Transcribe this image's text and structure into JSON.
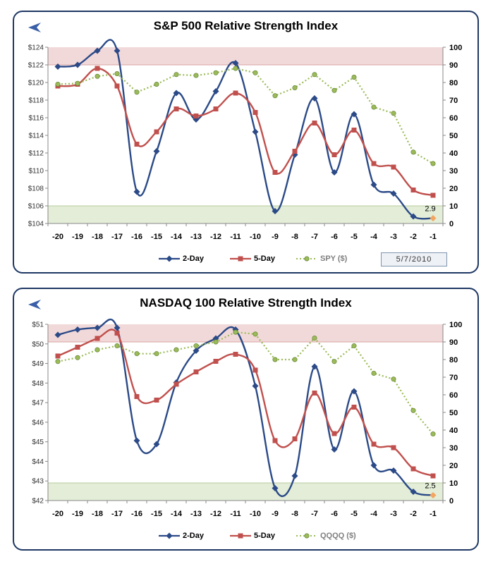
{
  "charts": [
    {
      "title": "S&P 500 Relative Strength Index",
      "date": "5/7/2010",
      "annotation": "2.9",
      "chart_data": {
        "type": "line",
        "x": [
          -20,
          -19,
          -18,
          -17,
          -16,
          -15,
          -14,
          -13,
          -12,
          -11,
          -10,
          -9,
          -8,
          -7,
          -6,
          -5,
          -4,
          -3,
          -2,
          -1
        ],
        "left_axis": {
          "ylim": [
            104,
            124
          ],
          "ticks": [
            "$104",
            "$106",
            "$108",
            "$110",
            "$112",
            "$114",
            "$116",
            "$118",
            "$120",
            "$122",
            "$124"
          ]
        },
        "right_axis": {
          "ylim": [
            0,
            100
          ],
          "ticks": [
            "0",
            "10",
            "20",
            "30",
            "40",
            "50",
            "60",
            "70",
            "80",
            "90",
            "100"
          ]
        },
        "bands": [
          {
            "from": 90,
            "to": 100,
            "color": "#f2d9d9"
          },
          {
            "from": 0,
            "to": 10,
            "color": "#e3edd7"
          }
        ],
        "series": [
          {
            "name": "2-Day",
            "axis": "right",
            "color": "#2b4a87",
            "values": [
              89,
              90,
              98,
              98,
              18,
              41,
              74,
              59,
              75,
              91,
              52,
              7,
              39,
              71,
              29,
              62,
              22,
              17,
              4,
              3
            ]
          },
          {
            "name": "5-Day",
            "axis": "right",
            "color": "#c0504d",
            "values": [
              78,
              79,
              88,
              78,
              45,
              52,
              65,
              61,
              65,
              74,
              63,
              29,
              41,
              57,
              39,
              53,
              34,
              32,
              19,
              16
            ]
          },
          {
            "name": "SPY ($)",
            "axis": "left",
            "color": "#9bbb59",
            "values": [
              119.8,
              119.9,
              120.7,
              121,
              118.9,
              119.8,
              120.9,
              120.8,
              121.1,
              121.6,
              121.1,
              118.5,
              119.4,
              120.9,
              119.1,
              120.6,
              117.2,
              116.5,
              112.1,
              110.8
            ]
          }
        ],
        "last_marker_color": "#f4a55f",
        "grid": false,
        "legend": "bottom"
      }
    },
    {
      "title": "NASDAQ 100 Relative Strength Index",
      "date": "",
      "annotation": "2.5",
      "chart_data": {
        "type": "line",
        "x": [
          -20,
          -19,
          -18,
          -17,
          -16,
          -15,
          -14,
          -13,
          -12,
          -11,
          -10,
          -9,
          -8,
          -7,
          -6,
          -5,
          -4,
          -3,
          -2,
          -1
        ],
        "left_axis": {
          "ylim": [
            42,
            51
          ],
          "ticks": [
            "$42",
            "$43",
            "$44",
            "$45",
            "$46",
            "$47",
            "$48",
            "$49",
            "$50",
            "$51"
          ]
        },
        "right_axis": {
          "ylim": [
            0,
            100
          ],
          "ticks": [
            "0",
            "10",
            "20",
            "30",
            "40",
            "50",
            "60",
            "70",
            "80",
            "90",
            "100"
          ]
        },
        "bands": [
          {
            "from": 90,
            "to": 100,
            "color": "#f2d9d9"
          },
          {
            "from": 0,
            "to": 10,
            "color": "#e3edd7"
          }
        ],
        "series": [
          {
            "name": "2-Day",
            "axis": "right",
            "color": "#2b4a87",
            "values": [
              94,
              97,
              98,
              98,
              34,
              32,
              67,
              85,
              92,
              97,
              65,
              7,
              14,
              76,
              29,
              62,
              20,
              17,
              5,
              3
            ]
          },
          {
            "name": "5-Day",
            "axis": "right",
            "color": "#c0504d",
            "values": [
              82,
              87,
              92,
              95,
              59,
              57,
              66,
              73,
              79,
              83,
              74,
              34,
              35,
              61,
              38,
              53,
              32,
              30,
              18,
              14
            ]
          },
          {
            "name": "QQQQ ($)",
            "axis": "left",
            "color": "#9bbb59",
            "values": [
              49.1,
              49.3,
              49.7,
              49.9,
              49.5,
              49.5,
              49.7,
              49.9,
              50.1,
              50.6,
              50.5,
              49.2,
              49.2,
              50.3,
              49.1,
              49.9,
              48.5,
              48.2,
              46.6,
              45.4
            ]
          }
        ],
        "last_marker_color": "#f4a55f",
        "grid": false,
        "legend": "bottom"
      }
    }
  ]
}
